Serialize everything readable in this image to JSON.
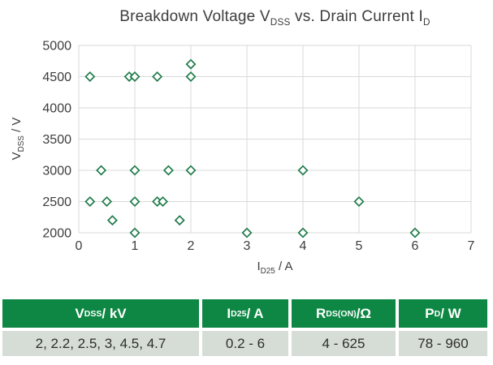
{
  "chart_data": {
    "type": "scatter",
    "title": "Breakdown Voltage V_DSS vs. Drain Current I_D",
    "title_parts": [
      {
        "text": "Breakdown Voltage V",
        "sub": false
      },
      {
        "text": "DSS",
        "sub": true
      },
      {
        "text": " vs. Drain Current I",
        "sub": false
      },
      {
        "text": "D",
        "sub": true
      }
    ],
    "xlabel": "I_D25 / A",
    "xlabel_parts": [
      {
        "text": "I",
        "sub": false
      },
      {
        "text": "D25",
        "sub": true
      },
      {
        "text": " / A",
        "sub": false
      }
    ],
    "ylabel": "V_DSS / V",
    "ylabel_parts": [
      {
        "text": "V",
        "sub": false
      },
      {
        "text": "DSS",
        "sub": true
      },
      {
        "text": " / V",
        "sub": false
      }
    ],
    "xlim": [
      0,
      7
    ],
    "ylim": [
      2000,
      5000
    ],
    "xticks": [
      0,
      1,
      2,
      3,
      4,
      5,
      6,
      7
    ],
    "yticks": [
      2000,
      2500,
      3000,
      3500,
      4000,
      4500,
      5000
    ],
    "grid": true,
    "legend": "none",
    "marker": {
      "shape": "diamond-outline",
      "stroke": "#1f7b4a",
      "fill": "#ffffff"
    },
    "grid_color": "#d9d9d9",
    "text_color": "#3d3d3d",
    "points": [
      {
        "x": 0.2,
        "y": 4500
      },
      {
        "x": 0.9,
        "y": 4500
      },
      {
        "x": 1.0,
        "y": 4500
      },
      {
        "x": 1.4,
        "y": 4500
      },
      {
        "x": 2.0,
        "y": 4700
      },
      {
        "x": 2.0,
        "y": 4500
      },
      {
        "x": 0.4,
        "y": 3000
      },
      {
        "x": 1.0,
        "y": 3000
      },
      {
        "x": 1.6,
        "y": 3000
      },
      {
        "x": 2.0,
        "y": 3000
      },
      {
        "x": 4.0,
        "y": 3000
      },
      {
        "x": 0.2,
        "y": 2500
      },
      {
        "x": 0.5,
        "y": 2500
      },
      {
        "x": 1.0,
        "y": 2500
      },
      {
        "x": 1.4,
        "y": 2500
      },
      {
        "x": 1.5,
        "y": 2500
      },
      {
        "x": 5.0,
        "y": 2500
      },
      {
        "x": 0.6,
        "y": 2200
      },
      {
        "x": 1.8,
        "y": 2200
      },
      {
        "x": 1.0,
        "y": 2000
      },
      {
        "x": 3.0,
        "y": 2000
      },
      {
        "x": 4.0,
        "y": 2000
      },
      {
        "x": 6.0,
        "y": 2000
      }
    ]
  },
  "table": {
    "header_bg": "#0d8743",
    "header_text_color": "#ffffff",
    "row_bg": "#d5ddd6",
    "row_text_color": "#2e2e2e",
    "columns": [
      {
        "header": "V_DSS / kV",
        "header_parts": [
          {
            "text": "V"
          },
          {
            "text": "DSS",
            "sub": true
          },
          {
            "text": " / kV"
          }
        ],
        "value": "2, 2.2, 2.5, 3, 4.5, 4.7"
      },
      {
        "header": "I_D25 / A",
        "header_parts": [
          {
            "text": "I"
          },
          {
            "text": "D25",
            "sub": true
          },
          {
            "text": " / A"
          }
        ],
        "value": "0.2 - 6"
      },
      {
        "header": "R_DS(ON) /Ω",
        "header_parts": [
          {
            "text": "R"
          },
          {
            "text": "DS(ON)",
            "sub": true
          },
          {
            "text": " /Ω"
          }
        ],
        "value": "4 - 625"
      },
      {
        "header": "P_D / W",
        "header_parts": [
          {
            "text": "P"
          },
          {
            "text": "D",
            "sub": true
          },
          {
            "text": " / W"
          }
        ],
        "value": "78 - 960"
      }
    ]
  }
}
